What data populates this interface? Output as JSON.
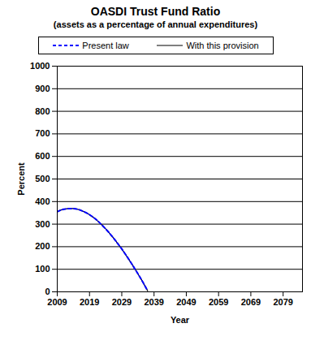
{
  "chart_data": {
    "type": "line",
    "title": "OASDI Trust Fund Ratio",
    "subtitle": "(assets as a percentage of annual expenditures)",
    "x_label": "Year",
    "y_label": "Percent",
    "x": [
      2009,
      2010,
      2011,
      2012,
      2013,
      2014,
      2015,
      2016,
      2017,
      2018,
      2019,
      2020,
      2021,
      2022,
      2023,
      2024,
      2025,
      2026,
      2027,
      2028,
      2029,
      2030,
      2031,
      2032,
      2033,
      2034,
      2035,
      2036,
      2037
    ],
    "series": [
      {
        "name": "Present law",
        "color": "#0000ff",
        "line_style": "dashed",
        "values": [
          355,
          362,
          366,
          368,
          369,
          369,
          367,
          363,
          357,
          350,
          342,
          332,
          321,
          308,
          294,
          279,
          263,
          246,
          228,
          209,
          190,
          169,
          148,
          126,
          103,
          80,
          56,
          31,
          5
        ]
      },
      {
        "name": "With this provision",
        "color": "#000000",
        "line_style": "solid",
        "values": [
          355,
          362,
          366,
          368,
          369,
          369,
          367,
          363,
          357,
          350,
          342,
          332,
          321,
          308,
          294,
          279,
          263,
          246,
          228,
          209,
          190,
          169,
          148,
          126,
          103,
          80,
          56,
          31,
          5
        ]
      }
    ],
    "xlim": [
      2009,
      2085
    ],
    "ylim": [
      0,
      1000
    ],
    "xticks": [
      2009,
      2019,
      2029,
      2039,
      2049,
      2059,
      2069,
      2079
    ],
    "yticks": [
      0,
      100,
      200,
      300,
      400,
      500,
      600,
      700,
      800,
      900,
      1000
    ],
    "grid": true,
    "legend": "top"
  }
}
